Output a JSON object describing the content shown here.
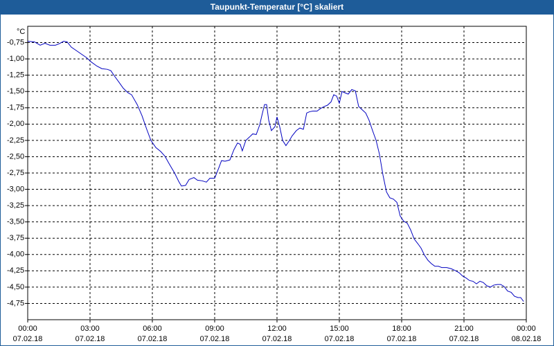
{
  "chart_data": {
    "type": "line",
    "title": "Taupunkt-Temperatur [°C] skaliert",
    "y_unit": "°C",
    "xlim": [
      0,
      24
    ],
    "ylim": [
      -5,
      -0.5
    ],
    "grid": true,
    "xticks": [
      {
        "value": 0,
        "label": "00:00",
        "date": "07.02.18"
      },
      {
        "value": 3,
        "label": "03:00",
        "date": "07.02.18"
      },
      {
        "value": 6,
        "label": "06:00",
        "date": "07.02.18"
      },
      {
        "value": 9,
        "label": "09:00",
        "date": "07.02.18"
      },
      {
        "value": 12,
        "label": "12:00",
        "date": "07.02.18"
      },
      {
        "value": 15,
        "label": "15:00",
        "date": "07.02.18"
      },
      {
        "value": 18,
        "label": "18:00",
        "date": "07.02.18"
      },
      {
        "value": 21,
        "label": "21:00",
        "date": "07.02.18"
      },
      {
        "value": 24,
        "label": "00:00",
        "date": "08.02.18"
      }
    ],
    "yticks": [
      {
        "value": -0.75,
        "label": "-0,75"
      },
      {
        "value": -1,
        "label": "-1,00"
      },
      {
        "value": -1.25,
        "label": "-1,25"
      },
      {
        "value": -1.5,
        "label": "-1,50"
      },
      {
        "value": -1.75,
        "label": "-1,75"
      },
      {
        "value": -2,
        "label": "-2,00"
      },
      {
        "value": -2.25,
        "label": "-2,25"
      },
      {
        "value": -2.5,
        "label": "-2,50"
      },
      {
        "value": -2.75,
        "label": "-2,75"
      },
      {
        "value": -3,
        "label": "-3,00"
      },
      {
        "value": -3.25,
        "label": "-3,25"
      },
      {
        "value": -3.5,
        "label": "-3,50"
      },
      {
        "value": -3.75,
        "label": "-3,75"
      },
      {
        "value": -4,
        "label": "-4,00"
      },
      {
        "value": -4.25,
        "label": "-4,25"
      },
      {
        "value": -4.5,
        "label": "-4,50"
      },
      {
        "value": -4.75,
        "label": "-4,75"
      }
    ],
    "x": [
      0,
      0.33,
      0.6,
      0.83,
      1.07,
      1.33,
      1.5,
      1.73,
      1.9,
      2.1,
      2.33,
      2.6,
      2.83,
      3.07,
      3.33,
      3.57,
      3.83,
      4,
      4.17,
      4.4,
      4.6,
      4.83,
      5,
      5.27,
      5.5,
      5.73,
      5.93,
      6.17,
      6.4,
      6.6,
      6.83,
      7.07,
      7.27,
      7.4,
      7.6,
      7.77,
      8,
      8.17,
      8.4,
      8.6,
      8.77,
      9,
      9.2,
      9.33,
      9.5,
      9.73,
      9.93,
      10.1,
      10.23,
      10.33,
      10.5,
      10.67,
      10.83,
      11,
      11.17,
      11.27,
      11.4,
      11.5,
      11.6,
      11.73,
      11.9,
      12,
      12.13,
      12.27,
      12.43,
      12.6,
      12.73,
      12.93,
      13.1,
      13.27,
      13.43,
      13.57,
      13.73,
      13.93,
      14.1,
      14.27,
      14.43,
      14.6,
      14.73,
      14.87,
      15,
      15.13,
      15.27,
      15.43,
      15.6,
      15.77,
      15.93,
      16.1,
      16.27,
      16.43,
      16.6,
      16.77,
      16.93,
      17.1,
      17.27,
      17.43,
      17.6,
      17.77,
      17.93,
      18.1,
      18.27,
      18.43,
      18.6,
      18.77,
      18.93,
      19.1,
      19.27,
      19.43,
      19.6,
      19.77,
      19.93,
      20.17,
      20.4,
      20.6,
      20.77,
      20.93,
      21.1,
      21.27,
      21.43,
      21.6,
      21.77,
      21.93,
      22.1,
      22.27,
      22.43,
      22.6,
      22.77,
      22.93,
      23.1,
      23.27,
      23.43,
      23.6,
      23.73,
      23.87
    ],
    "series": [
      {
        "color": "#0000c0",
        "values": [
          -0.73,
          -0.74,
          -0.79,
          -0.76,
          -0.79,
          -0.79,
          -0.77,
          -0.73,
          -0.74,
          -0.82,
          -0.87,
          -0.93,
          -0.98,
          -1.05,
          -1.11,
          -1.15,
          -1.16,
          -1.18,
          -1.26,
          -1.36,
          -1.45,
          -1.52,
          -1.55,
          -1.7,
          -1.87,
          -2.08,
          -2.25,
          -2.36,
          -2.42,
          -2.49,
          -2.62,
          -2.75,
          -2.88,
          -2.95,
          -2.94,
          -2.85,
          -2.82,
          -2.86,
          -2.87,
          -2.89,
          -2.83,
          -2.83,
          -2.67,
          -2.56,
          -2.57,
          -2.55,
          -2.39,
          -2.29,
          -2.31,
          -2.41,
          -2.25,
          -2.2,
          -2.15,
          -2.16,
          -2.01,
          -1.87,
          -1.7,
          -1.7,
          -1.94,
          -2.1,
          -2.04,
          -1.89,
          -2.04,
          -2.25,
          -2.33,
          -2.25,
          -2.18,
          -2.1,
          -2.06,
          -2.08,
          -1.83,
          -1.81,
          -1.8,
          -1.8,
          -1.76,
          -1.73,
          -1.71,
          -1.66,
          -1.55,
          -1.57,
          -1.68,
          -1.5,
          -1.52,
          -1.54,
          -1.47,
          -1.49,
          -1.73,
          -1.78,
          -1.83,
          -1.94,
          -2.1,
          -2.25,
          -2.46,
          -2.78,
          -3.04,
          -3.13,
          -3.15,
          -3.2,
          -3.41,
          -3.49,
          -3.52,
          -3.62,
          -3.76,
          -3.83,
          -3.9,
          -4.01,
          -4.09,
          -4.14,
          -4.18,
          -4.18,
          -4.2,
          -4.2,
          -4.22,
          -4.25,
          -4.28,
          -4.33,
          -4.36,
          -4.4,
          -4.41,
          -4.45,
          -4.41,
          -4.43,
          -4.48,
          -4.5,
          -4.47,
          -4.46,
          -4.46,
          -4.49,
          -4.56,
          -4.58,
          -4.64,
          -4.66,
          -4.66,
          -4.72
        ]
      }
    ]
  }
}
